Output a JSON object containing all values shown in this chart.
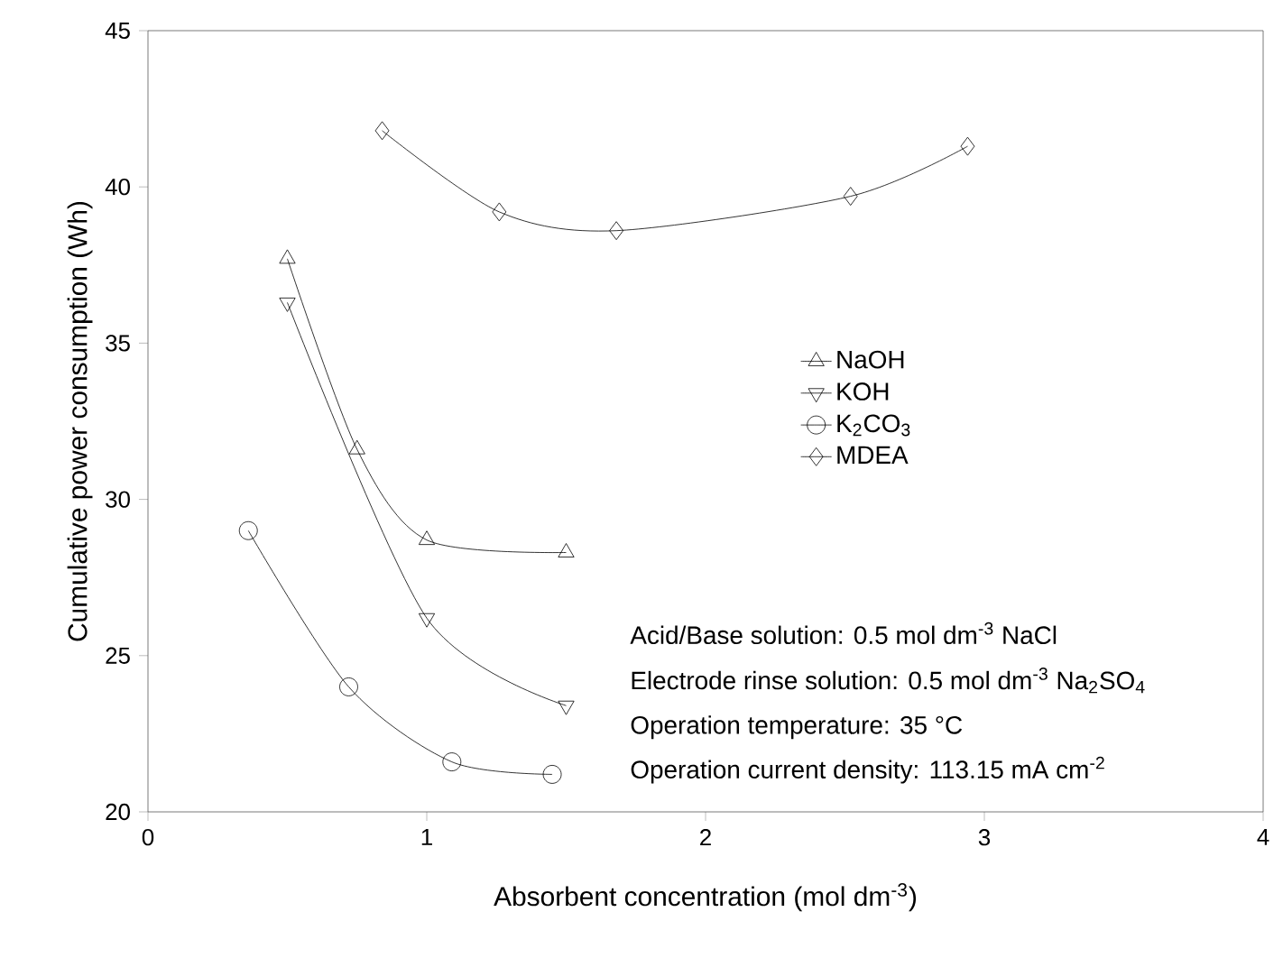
{
  "chart_data": {
    "type": "line",
    "xlabel": "Absorbent concentration (mol dm$^{-3}$)",
    "ylabel": "Cumulative power consumption (Wh)",
    "xlim": [
      0,
      4
    ],
    "ylim": [
      20,
      45
    ],
    "xticks": [
      0,
      1,
      2,
      3,
      4
    ],
    "yticks": [
      20,
      25,
      30,
      35,
      40,
      45
    ],
    "legend": "right",
    "grid": false,
    "series": [
      {
        "name": "NaOH",
        "color": "#000000",
        "marker": "triangle",
        "x": [
          0.5,
          0.75,
          1.0,
          1.5
        ],
        "values": [
          37.7,
          31.6,
          28.7,
          28.3
        ]
      },
      {
        "name": "KOH",
        "color": "#000000",
        "marker": "triangle-down",
        "x": [
          0.5,
          1.0,
          1.5
        ],
        "values": [
          36.3,
          26.2,
          23.4
        ]
      },
      {
        "name": "K$_{2}$CO$_{3}$",
        "color": "#000000",
        "marker": "circle",
        "x": [
          0.36,
          0.72,
          1.09,
          1.45
        ],
        "values": [
          29.0,
          24.0,
          21.6,
          21.2
        ]
      },
      {
        "name": "MDEA",
        "color": "#000000",
        "marker": "diamond",
        "x": [
          0.84,
          1.26,
          1.68,
          2.52,
          2.94
        ],
        "values": [
          41.8,
          39.2,
          38.6,
          39.7,
          41.3
        ]
      }
    ],
    "annotations": [
      "Acid/Base solution: 0.5 mol dm$^{-3}$ NaCl",
      "Electrode rinse solution: 0.5 mol dm$^{-3}$ Na$_{2}$SO$_{4}$",
      "Operation temperature: 35 °C",
      "Operation current density: 113.15 mA cm$^{-2}$"
    ]
  }
}
